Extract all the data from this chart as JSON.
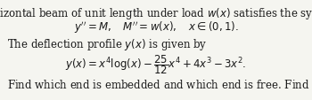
{
  "line1": "A horizontal beam of unit length under load $w(x)$ satisfies the system:",
  "line2": "$y'' = M, \\quad M'' = w(x), \\quad x \\in (0, 1).$",
  "line3": "The deflection profile $y(x)$ is given by",
  "line4": "$y(x) = x^4 \\log(x) - \\dfrac{25}{12}x^4 + 4x^3 - 3x^2.$",
  "line5": "Find which end is embedded and which end is free. Find the load $w(x)$.",
  "bg_color": "#f5f5f0",
  "text_color": "#1a1a1a",
  "fontsize": 8.5
}
